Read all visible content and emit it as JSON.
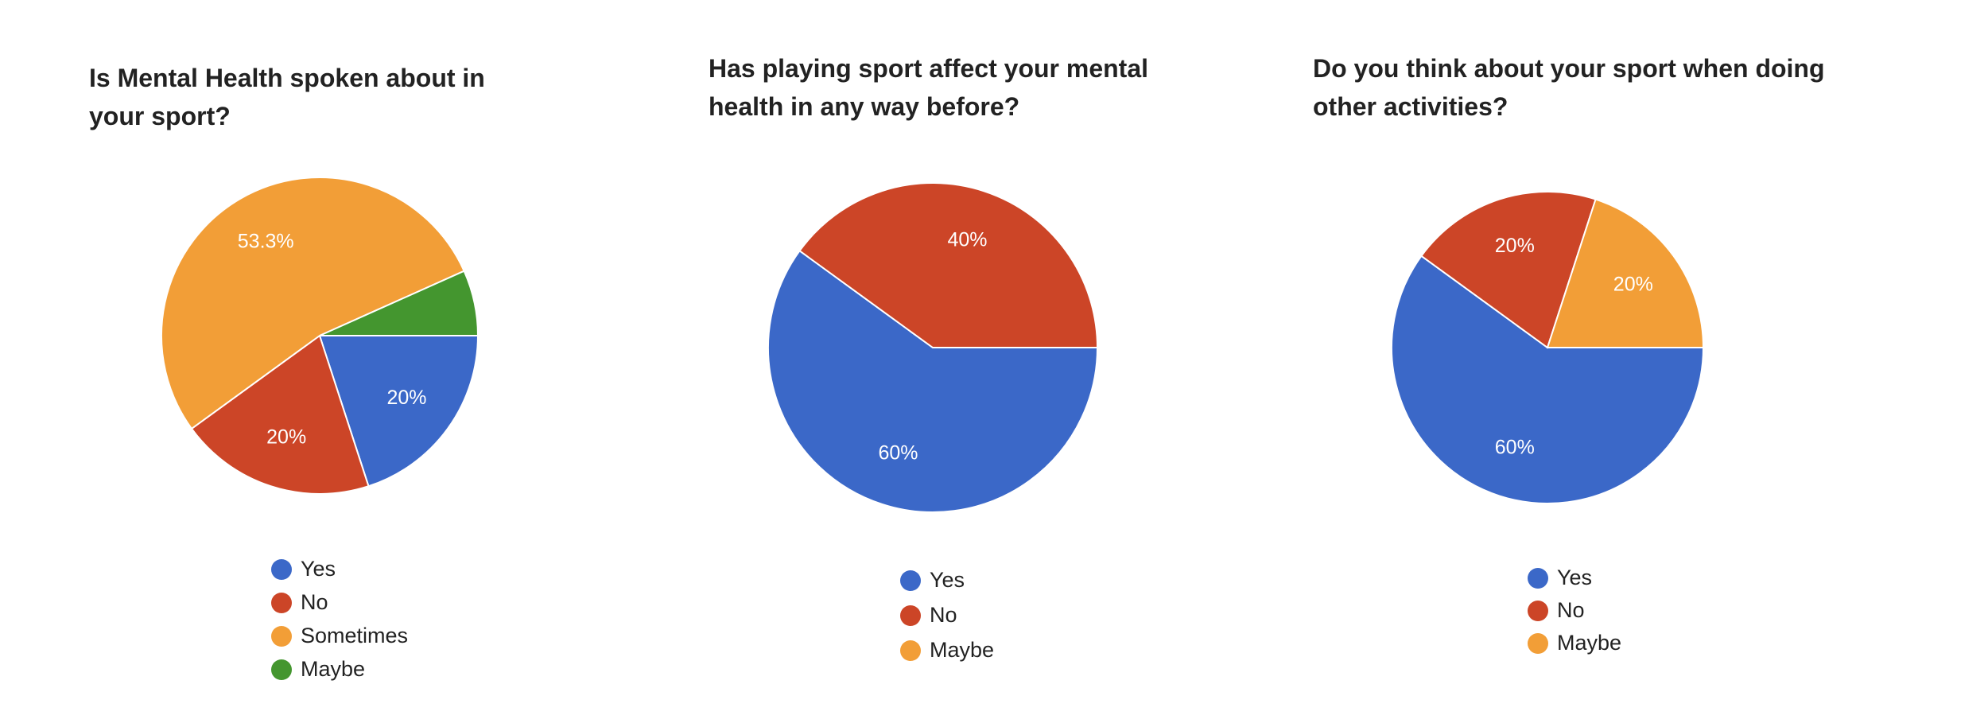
{
  "chart_data": [
    {
      "type": "pie",
      "title": "Is Mental Health spoken about in your sport?",
      "categories": [
        "Yes",
        "No",
        "Sometimes",
        "Maybe"
      ],
      "values": [
        20,
        20,
        53.3,
        6.7
      ],
      "value_labels": [
        "20%",
        "20%",
        "53.3%",
        null
      ],
      "colors": [
        "#3b68c8",
        "#cc4527",
        "#f29e37",
        "#44962f"
      ]
    },
    {
      "type": "pie",
      "title": "Has playing sport affect your mental health in any way before?",
      "categories": [
        "Yes",
        "No",
        "Maybe"
      ],
      "values": [
        60,
        40,
        0
      ],
      "value_labels": [
        "60%",
        "40%",
        null
      ],
      "colors": [
        "#3b68c8",
        "#cc4527",
        "#f29e37"
      ]
    },
    {
      "type": "pie",
      "title": "Do you think about your sport when doing other activities?",
      "categories": [
        "Yes",
        "No",
        "Maybe"
      ],
      "values": [
        60,
        20,
        20
      ],
      "value_labels": [
        "60%",
        "20%",
        "20%"
      ],
      "colors": [
        "#3b68c8",
        "#cc4527",
        "#f29e37"
      ]
    }
  ]
}
